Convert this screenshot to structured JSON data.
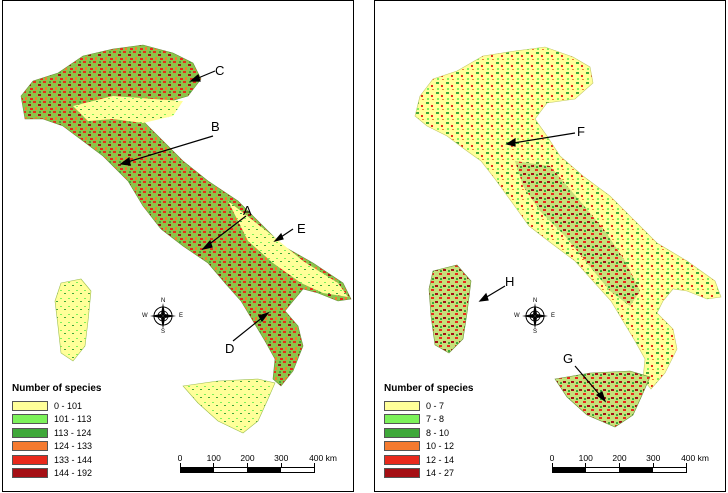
{
  "panels": [
    {
      "legend_title": "Number of species",
      "classes": [
        {
          "label": "0 - 101",
          "color": "#ffff99"
        },
        {
          "label": "101 - 113",
          "color": "#7cf25a"
        },
        {
          "label": "113 - 124",
          "color": "#3fa83a"
        },
        {
          "label": "124 - 133",
          "color": "#f47a2f"
        },
        {
          "label": "133 - 144",
          "color": "#e8291c"
        },
        {
          "label": "144 - 192",
          "color": "#a50f14"
        }
      ],
      "labels": [
        "A",
        "B",
        "C",
        "D",
        "E"
      ]
    },
    {
      "legend_title": "Number of species",
      "classes": [
        {
          "label": "0 - 7",
          "color": "#ffff99"
        },
        {
          "label": "7 - 8",
          "color": "#7cf25a"
        },
        {
          "label": "8 - 10",
          "color": "#3fa83a"
        },
        {
          "label": "10 - 12",
          "color": "#f47a2f"
        },
        {
          "label": "12 - 14",
          "color": "#e8291c"
        },
        {
          "label": "14 - 27",
          "color": "#a50f14"
        }
      ],
      "labels": [
        "F",
        "G",
        "H"
      ]
    }
  ],
  "compass": {
    "n": "N",
    "s": "S",
    "e": "E",
    "w": "W"
  },
  "scale": {
    "ticks": [
      "0",
      "100",
      "200",
      "300",
      "400 km"
    ]
  }
}
